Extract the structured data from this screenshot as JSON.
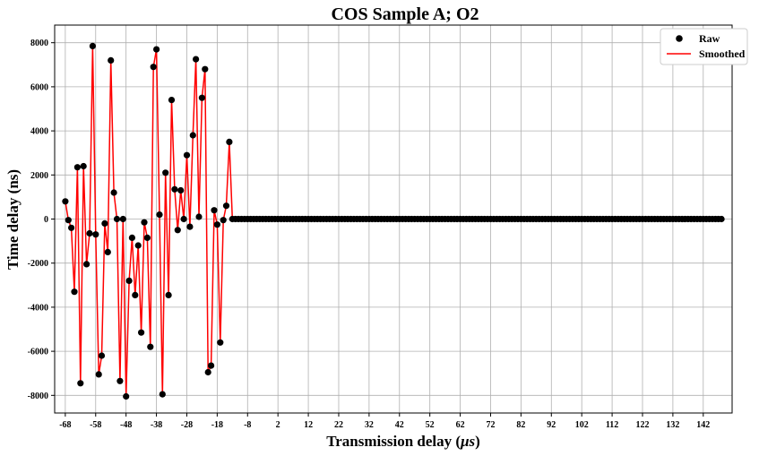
{
  "chart_data": {
    "type": "line",
    "title": "COS Sample A; O2",
    "xlabel_main": "Transmission delay (",
    "xlabel_unit": "μs",
    "xlabel_close": ")",
    "ylabel": "Time delay (ns)",
    "xlim": [
      -71.5,
      151.5
    ],
    "ylim": [
      -8800,
      8800
    ],
    "xticks": [
      -68,
      -58,
      -48,
      -38,
      -28,
      -18,
      -8,
      2,
      12,
      22,
      32,
      42,
      52,
      62,
      72,
      82,
      92,
      102,
      112,
      122,
      132,
      142
    ],
    "yticks": [
      -8000,
      -6000,
      -4000,
      -2000,
      0,
      2000,
      4000,
      6000,
      8000
    ],
    "grid": true,
    "legend_position": "top-right",
    "series": [
      {
        "name": "Raw",
        "style": "markers",
        "color": "#000000"
      },
      {
        "name": "Smoothed",
        "style": "line",
        "color": "#ff0000"
      }
    ],
    "x": [
      -68,
      -67,
      -66,
      -65,
      -64,
      -63,
      -62,
      -61,
      -60,
      -59,
      -58,
      -57,
      -56,
      -55,
      -54,
      -53,
      -52,
      -51,
      -50,
      -49,
      -48,
      -47,
      -46,
      -45,
      -44,
      -43,
      -42,
      -41,
      -40,
      -39,
      -38,
      -37,
      -36,
      -35,
      -34,
      -33,
      -32,
      -31,
      -30,
      -29,
      -28,
      -27,
      -26,
      -25,
      -24,
      -23,
      -22,
      -21,
      -20,
      -19,
      -18,
      -17,
      -16,
      -15,
      -14,
      -13,
      -12,
      -11,
      -10,
      -9,
      -8,
      -7,
      -6,
      -5,
      -4,
      -3,
      -2,
      -1,
      0,
      1,
      2,
      3,
      4,
      5,
      6,
      7,
      8,
      9,
      10,
      11,
      12,
      13,
      14,
      15,
      16,
      17,
      18,
      19,
      20,
      21,
      22,
      23,
      24,
      25,
      26,
      27,
      28,
      29,
      30,
      31,
      32,
      33,
      34,
      35,
      36,
      37,
      38,
      39,
      40,
      41,
      42,
      43,
      44,
      45,
      46,
      47,
      48,
      49,
      50,
      51,
      52,
      53,
      54,
      55,
      56,
      57,
      58,
      59,
      60,
      61,
      62,
      63,
      64,
      65,
      66,
      67,
      68,
      69,
      70,
      71,
      72,
      73,
      74,
      75,
      76,
      77,
      78,
      79,
      80,
      81,
      82,
      83,
      84,
      85,
      86,
      87,
      88,
      89,
      90,
      91,
      92,
      93,
      94,
      95,
      96,
      97,
      98,
      99,
      100,
      101,
      102,
      103,
      104,
      105,
      106,
      107,
      108,
      109,
      110,
      111,
      112,
      113,
      114,
      115,
      116,
      117,
      118,
      119,
      120,
      121,
      122,
      123,
      124,
      125,
      126,
      127,
      128,
      129,
      130,
      131,
      132,
      133,
      134,
      135,
      136,
      137,
      138,
      139,
      140,
      141,
      142,
      143,
      144,
      145,
      146,
      147,
      148
    ],
    "raw_nonzero_prefix": [
      800,
      -50,
      -400,
      -3300,
      2350,
      -7450,
      2400,
      -2050,
      -650,
      7850,
      -700,
      -7050,
      -6200,
      -200,
      -1500,
      7200,
      1200,
      0,
      -7350,
      0,
      -8050,
      -2800,
      -850,
      -3450,
      -1200,
      -5150,
      -150,
      -850,
      -5800,
      6900,
      7700,
      200,
      -7950,
      2100,
      -3450,
      5400,
      1350,
      -500,
      1300,
      0,
      2900,
      -350,
      3800,
      7250,
      100,
      5500,
      6800,
      -6950,
      -6650,
      400,
      -250,
      -5600,
      -50,
      600,
      3500
    ],
    "zero_value": 0
  }
}
